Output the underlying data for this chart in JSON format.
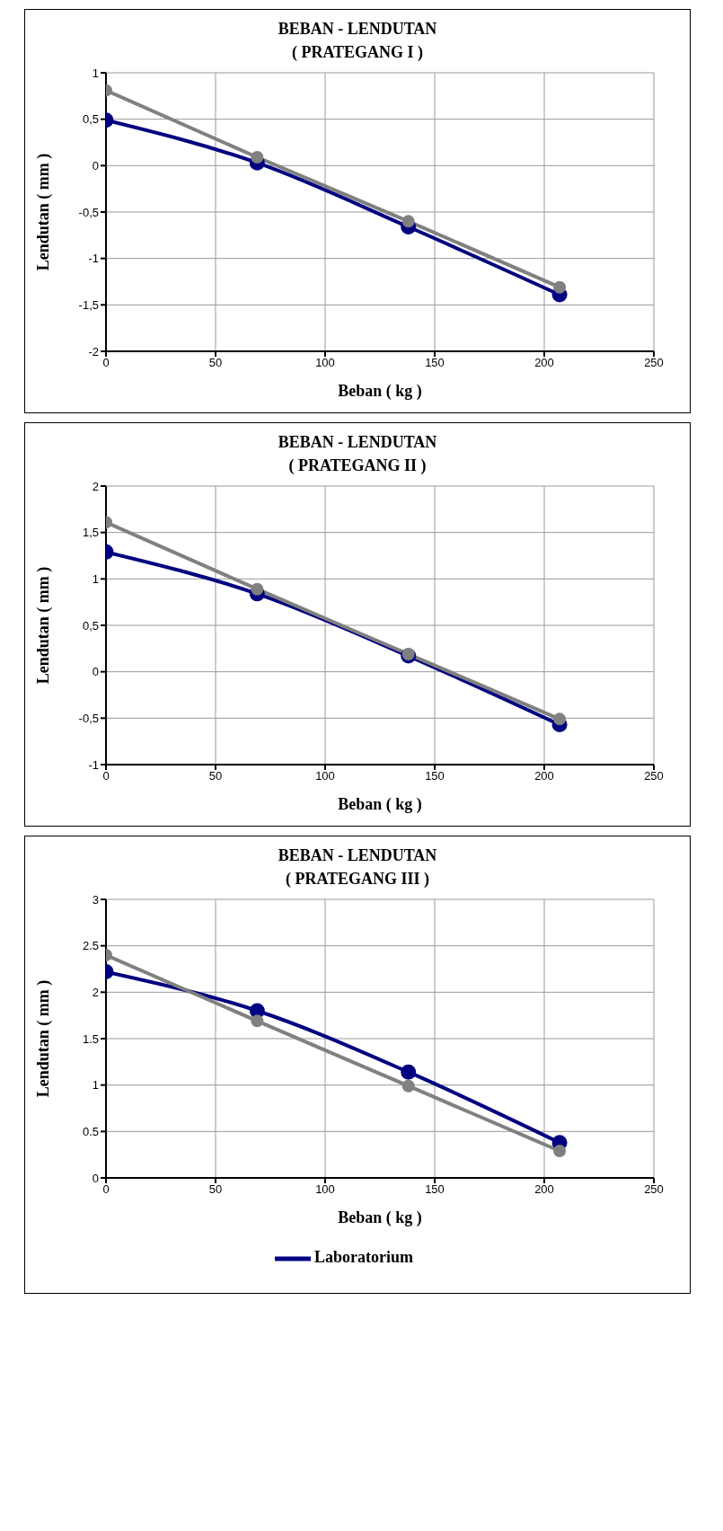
{
  "chart_data": [
    {
      "type": "line",
      "title": "BEBAN - LENDUTAN",
      "subtitle": "( PRATEGANG I )",
      "xlabel": "Beban ( kg )",
      "ylabel": "Lendutan ( mm )",
      "x": [
        0,
        69,
        138,
        207
      ],
      "series": [
        {
          "color": "#000080",
          "values": [
            0.49,
            0.03,
            -0.66,
            -1.39
          ]
        },
        {
          "color": "#808080",
          "values": [
            0.81,
            0.09,
            -0.6,
            -1.31
          ]
        }
      ],
      "xlim": [
        0,
        250
      ],
      "xticks": [
        0,
        50,
        100,
        150,
        200,
        250
      ],
      "ylim": [
        -2,
        1
      ],
      "yticks": [
        -2,
        {
          "value": -1.5,
          "label": "-1,5"
        },
        -1,
        {
          "value": -0.5,
          "label": "-0,5"
        },
        0,
        {
          "value": 0.5,
          "label": "0,5"
        },
        1
      ],
      "grid": true,
      "marker": "circle",
      "line_style": "solid"
    },
    {
      "type": "line",
      "title": "BEBAN - LENDUTAN",
      "subtitle": "( PRATEGANG II )",
      "xlabel": "Beban ( kg )",
      "ylabel": "Lendutan ( mm )",
      "x": [
        0,
        69,
        138,
        207
      ],
      "series": [
        {
          "color": "#000080",
          "values": [
            1.29,
            0.84,
            0.17,
            -0.57
          ]
        },
        {
          "color": "#808080",
          "values": [
            1.61,
            0.89,
            0.19,
            -0.51
          ]
        }
      ],
      "xlim": [
        0,
        250
      ],
      "xticks": [
        0,
        50,
        100,
        150,
        200,
        250
      ],
      "ylim": [
        -1,
        2
      ],
      "yticks": [
        -1,
        {
          "value": -0.5,
          "label": "-0,5"
        },
        0,
        {
          "value": 0.5,
          "label": "0,5"
        },
        1,
        {
          "value": 1.5,
          "label": "1,5"
        },
        2
      ],
      "grid": true,
      "marker": "circle",
      "line_style": "solid"
    },
    {
      "type": "line",
      "title": "BEBAN - LENDUTAN",
      "subtitle": "( PRATEGANG III )",
      "xlabel": "Beban ( kg )",
      "ylabel": "Lendutan ( mm )",
      "x": [
        0,
        69,
        138,
        207
      ],
      "series": [
        {
          "name": "Laboratorium",
          "color": "#000080",
          "values": [
            2.22,
            1.8,
            1.14,
            0.38
          ]
        },
        {
          "color": "#808080",
          "values": [
            2.4,
            1.69,
            0.99,
            0.29
          ]
        }
      ],
      "xlim": [
        0,
        250
      ],
      "xticks": [
        0,
        50,
        100,
        150,
        200,
        250
      ],
      "ylim": [
        0,
        3
      ],
      "yticks": [
        0,
        0.5,
        1,
        1.5,
        2,
        2.5,
        3
      ],
      "grid": true,
      "marker": "circle",
      "line_style": "solid",
      "legend": "bottom"
    }
  ]
}
